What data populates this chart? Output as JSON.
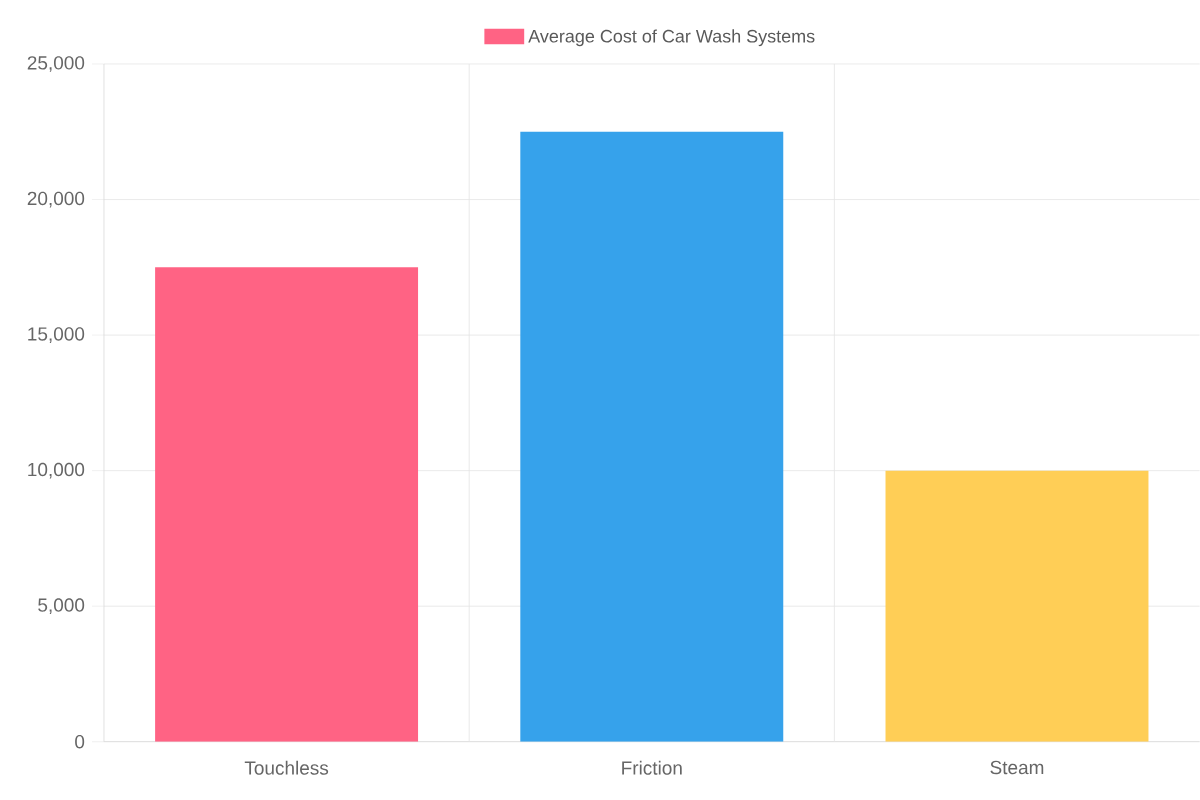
{
  "chart_data": {
    "type": "bar",
    "categories": [
      "Touchless",
      "Friction",
      "Steam"
    ],
    "series": [
      {
        "name": "Average Cost of Car Wash Systems",
        "colors": [
          "#ff6384",
          "#36a2eb",
          "#ffce56"
        ],
        "values": [
          17500,
          22500,
          10000
        ]
      }
    ],
    "ylim": [
      0,
      25000
    ],
    "yticks": [
      0,
      {
        "value": 5000,
        "label": "5,000"
      },
      {
        "value": 10000,
        "label": "10,000"
      },
      {
        "value": 15000,
        "label": "15,000"
      },
      {
        "value": 20000,
        "label": "20,000"
      },
      {
        "value": 25000,
        "label": "25,000"
      }
    ],
    "grid": true,
    "legend": "top"
  }
}
